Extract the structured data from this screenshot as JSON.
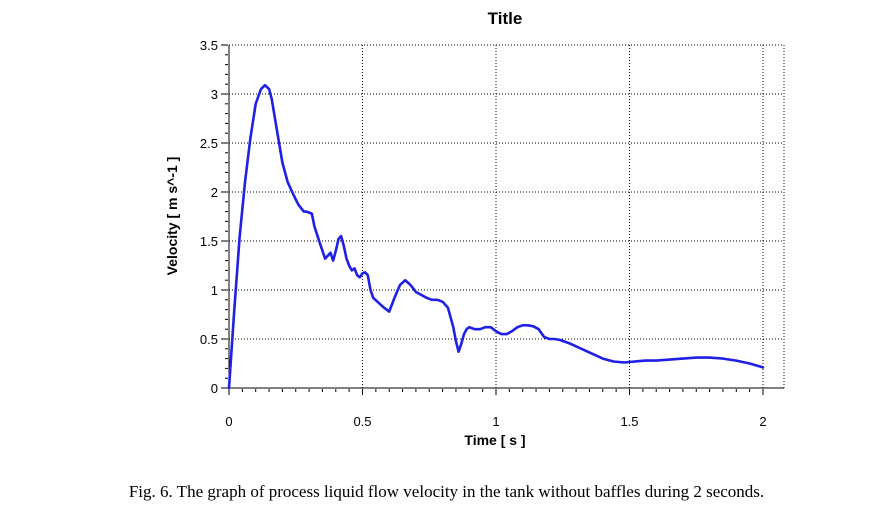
{
  "caption": "Fig. 6.  The graph of process liquid flow velocity in the tank without baffles during 2 seconds.",
  "chart_data": {
    "type": "line",
    "title": "Title",
    "xlabel": "Time [ s ]",
    "ylabel": "Velocity [ m s^-1 ]",
    "xlim": [
      0,
      2
    ],
    "ylim": [
      0,
      3.5
    ],
    "xticks": [
      0,
      0.5,
      1,
      1.5,
      2
    ],
    "xtick_labels": [
      "0",
      "0.5",
      "1",
      "1.5",
      "2"
    ],
    "yticks": [
      0,
      0.5,
      1,
      1.5,
      2,
      2.5,
      3,
      3.5
    ],
    "ytick_labels": [
      "0",
      "0.5",
      "1",
      "1.5",
      "2",
      "2.5",
      "3",
      "3.5"
    ],
    "grid": true,
    "line_color": "#1f1fe6",
    "series": [
      {
        "x": [
          0,
          0.02,
          0.04,
          0.06,
          0.08,
          0.1,
          0.12,
          0.135,
          0.15,
          0.16,
          0.18,
          0.2,
          0.22,
          0.24,
          0.26,
          0.28,
          0.29,
          0.31,
          0.32,
          0.34,
          0.36,
          0.37,
          0.38,
          0.39,
          0.4,
          0.41,
          0.42,
          0.43,
          0.44,
          0.45,
          0.46,
          0.47,
          0.48,
          0.49,
          0.5,
          0.51,
          0.52,
          0.53,
          0.54,
          0.56,
          0.58,
          0.6,
          0.62,
          0.64,
          0.66,
          0.68,
          0.7,
          0.72,
          0.74,
          0.76,
          0.78,
          0.8,
          0.82,
          0.84,
          0.85,
          0.86,
          0.87,
          0.88,
          0.89,
          0.9,
          0.92,
          0.94,
          0.96,
          0.98,
          1.0,
          1.02,
          1.04,
          1.06,
          1.08,
          1.1,
          1.12,
          1.14,
          1.16,
          1.18,
          1.2,
          1.22,
          1.24,
          1.28,
          1.32,
          1.36,
          1.4,
          1.44,
          1.48,
          1.52,
          1.56,
          1.6,
          1.65,
          1.7,
          1.75,
          1.8,
          1.85,
          1.9,
          1.95,
          2.0
        ],
        "y": [
          0.0,
          0.8,
          1.55,
          2.1,
          2.55,
          2.9,
          3.05,
          3.09,
          3.05,
          2.95,
          2.62,
          2.3,
          2.1,
          1.98,
          1.87,
          1.8,
          1.8,
          1.78,
          1.65,
          1.48,
          1.32,
          1.35,
          1.38,
          1.3,
          1.4,
          1.52,
          1.55,
          1.45,
          1.32,
          1.25,
          1.2,
          1.22,
          1.15,
          1.13,
          1.17,
          1.18,
          1.15,
          1.0,
          0.92,
          0.87,
          0.82,
          0.78,
          0.92,
          1.05,
          1.1,
          1.05,
          0.98,
          0.95,
          0.92,
          0.9,
          0.9,
          0.88,
          0.82,
          0.62,
          0.48,
          0.37,
          0.45,
          0.55,
          0.6,
          0.62,
          0.6,
          0.6,
          0.62,
          0.62,
          0.58,
          0.55,
          0.55,
          0.58,
          0.62,
          0.64,
          0.64,
          0.63,
          0.6,
          0.52,
          0.5,
          0.5,
          0.49,
          0.45,
          0.4,
          0.35,
          0.3,
          0.27,
          0.26,
          0.27,
          0.28,
          0.28,
          0.29,
          0.3,
          0.31,
          0.31,
          0.3,
          0.28,
          0.25,
          0.21
        ]
      }
    ]
  }
}
